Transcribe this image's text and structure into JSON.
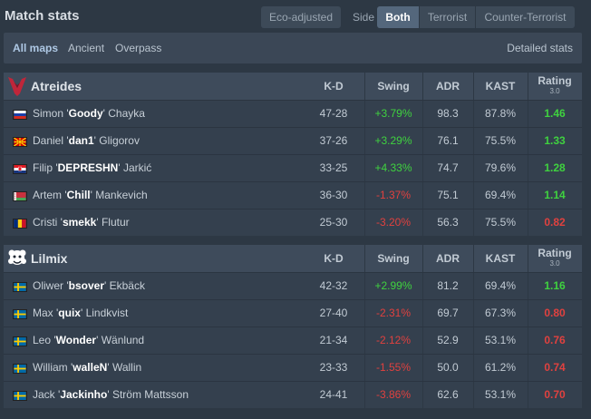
{
  "header": {
    "title": "Match stats",
    "eco_label": "Eco-adjusted",
    "side_label": "Side",
    "side_options": [
      "Both",
      "Terrorist",
      "Counter-Terrorist"
    ],
    "side_selected": "Both"
  },
  "maps": {
    "items": [
      "All maps",
      "Ancient",
      "Overpass"
    ],
    "selected": "All maps",
    "detailed_label": "Detailed stats"
  },
  "columns": {
    "kd": "K-D",
    "swing": "Swing",
    "adr": "ADR",
    "kast": "KAST",
    "rating": "Rating",
    "rating_sub": "3.0"
  },
  "teams": [
    {
      "name": "Atreides",
      "logo_icon": "atreides-logo-icon",
      "players": [
        {
          "first": "Simon '",
          "nick": "Goody",
          "last": "' Chayka",
          "flag": "russia-flag-icon",
          "kd": "47-28",
          "swing": "+3.79%",
          "adr": "98.3",
          "kast": "87.8%",
          "rating": "1.46"
        },
        {
          "first": "Daniel '",
          "nick": "dan1",
          "last": "' Gligorov",
          "flag": "north-macedonia-flag-icon",
          "kd": "37-26",
          "swing": "+3.29%",
          "adr": "76.1",
          "kast": "75.5%",
          "rating": "1.33"
        },
        {
          "first": "Filip '",
          "nick": "DEPRESHN",
          "last": "' Jarkić",
          "flag": "croatia-flag-icon",
          "kd": "33-25",
          "swing": "+4.33%",
          "adr": "74.7",
          "kast": "79.6%",
          "rating": "1.28"
        },
        {
          "first": "Artem '",
          "nick": "Chill",
          "last": "' Mankevich",
          "flag": "belarus-flag-icon",
          "kd": "36-30",
          "swing": "-1.37%",
          "adr": "75.1",
          "kast": "69.4%",
          "rating": "1.14"
        },
        {
          "first": "Cristi '",
          "nick": "smekk",
          "last": "' Flutur",
          "flag": "romania-flag-icon",
          "kd": "25-30",
          "swing": "-3.20%",
          "adr": "56.3",
          "kast": "75.5%",
          "rating": "0.82"
        }
      ]
    },
    {
      "name": "Lilmix",
      "logo_icon": "lilmix-logo-icon",
      "players": [
        {
          "first": "Oliwer '",
          "nick": "bsover",
          "last": "' Ekbäck",
          "flag": "sweden-flag-icon",
          "kd": "42-32",
          "swing": "+2.99%",
          "adr": "81.2",
          "kast": "69.4%",
          "rating": "1.16"
        },
        {
          "first": "Max '",
          "nick": "quix",
          "last": "' Lindkvist",
          "flag": "sweden-flag-icon",
          "kd": "27-40",
          "swing": "-2.31%",
          "adr": "69.7",
          "kast": "67.3%",
          "rating": "0.80"
        },
        {
          "first": "Leo '",
          "nick": "Wonder",
          "last": "' Wänlund",
          "flag": "sweden-flag-icon",
          "kd": "21-34",
          "swing": "-2.12%",
          "adr": "52.9",
          "kast": "53.1%",
          "rating": "0.76"
        },
        {
          "first": "William '",
          "nick": "walleN",
          "last": "' Wallin",
          "flag": "sweden-flag-icon",
          "kd": "23-33",
          "swing": "-1.55%",
          "adr": "50.0",
          "kast": "61.2%",
          "rating": "0.74"
        },
        {
          "first": "Jack '",
          "nick": "Jackinho",
          "last": "' Ström Mattsson",
          "flag": "sweden-flag-icon",
          "kd": "24-41",
          "swing": "-3.86%",
          "adr": "62.6",
          "kast": "53.1%",
          "rating": "0.70"
        }
      ]
    }
  ],
  "colors": {
    "positive": "#3fd23f",
    "negative": "#e0413f",
    "background": "#2d3844",
    "atreides_logo": "#c0263a"
  }
}
